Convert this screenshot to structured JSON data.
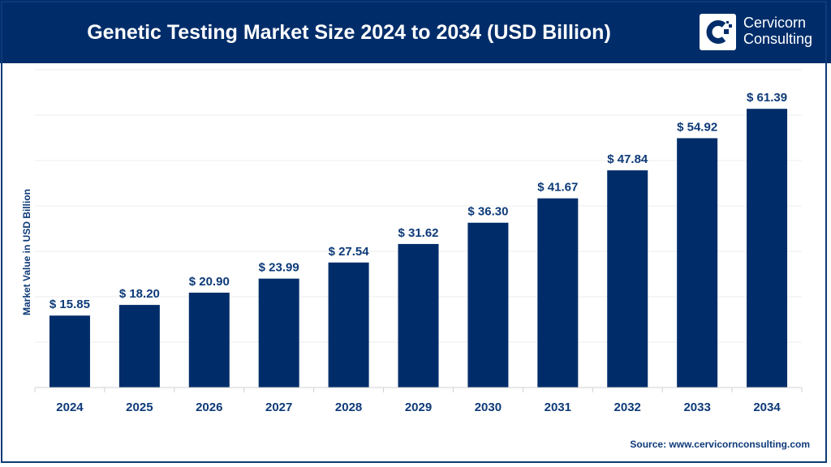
{
  "header": {
    "title": "Genetic Testing Market Size 2024 to 2034 (USD Billion)"
  },
  "logo": {
    "line1": "Cervicorn",
    "line2": "Consulting"
  },
  "source": "Source: www.cervicornconsulting.com",
  "colors": {
    "bar": "#002d6a",
    "header": "#002d6a",
    "text": "#0d3a78"
  },
  "chart_data": {
    "type": "bar",
    "title": "Genetic Testing Market Size 2024 to 2034 (USD Billion)",
    "xlabel": "",
    "ylabel": "Market Value in USD Billion",
    "categories": [
      "2024",
      "2025",
      "2026",
      "2027",
      "2028",
      "2029",
      "2030",
      "2031",
      "2032",
      "2033",
      "2034"
    ],
    "values": [
      15.85,
      18.2,
      20.9,
      23.99,
      27.54,
      31.62,
      36.3,
      41.67,
      47.84,
      54.92,
      61.39
    ],
    "data_labels": [
      "$ 15.85",
      "$ 18.20",
      "$ 20.90",
      "$ 23.99",
      "$ 27.54",
      "$ 31.62",
      "$ 36.30",
      "$ 41.67",
      "$ 47.84",
      "$ 54.92",
      "$ 61.39"
    ],
    "ylim": [
      0,
      70
    ],
    "grid": true,
    "y_tick_labels_shown": false
  }
}
